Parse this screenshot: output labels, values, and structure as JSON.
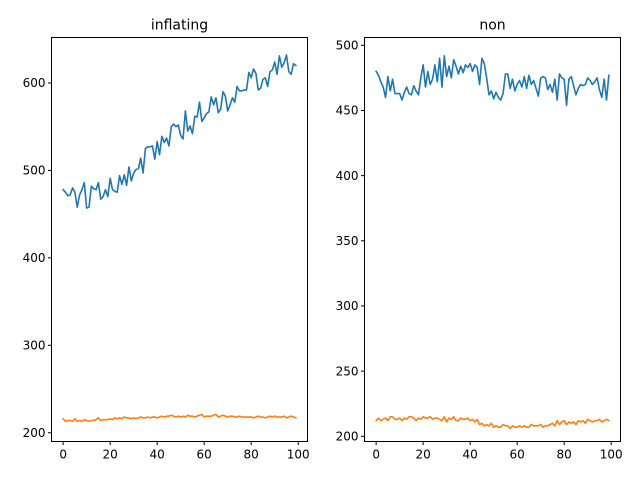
{
  "colors": {
    "series_1": "#1f77b4",
    "series_2": "#ff7f0e"
  },
  "chart_data": [
    {
      "type": "line",
      "title": "inflating",
      "xlabel": "",
      "ylabel": "",
      "xlim": [
        -4.95,
        103.95
      ],
      "ylim": [
        190,
        652
      ],
      "xticks": [
        0,
        20,
        40,
        60,
        80,
        100
      ],
      "yticks": [
        200,
        300,
        400,
        500,
        600
      ],
      "grid": false,
      "legend": false,
      "x": [
        0,
        1,
        2,
        3,
        4,
        5,
        6,
        7,
        8,
        9,
        10,
        11,
        12,
        13,
        14,
        15,
        16,
        17,
        18,
        19,
        20,
        21,
        22,
        23,
        24,
        25,
        26,
        27,
        28,
        29,
        30,
        31,
        32,
        33,
        34,
        35,
        36,
        37,
        38,
        39,
        40,
        41,
        42,
        43,
        44,
        45,
        46,
        47,
        48,
        49,
        50,
        51,
        52,
        53,
        54,
        55,
        56,
        57,
        58,
        59,
        60,
        61,
        62,
        63,
        64,
        65,
        66,
        67,
        68,
        69,
        70,
        71,
        72,
        73,
        74,
        75,
        76,
        77,
        78,
        79,
        80,
        81,
        82,
        83,
        84,
        85,
        86,
        87,
        88,
        89,
        90,
        91,
        92,
        93,
        94,
        95,
        96,
        97,
        98,
        99
      ],
      "series": [
        {
          "values": [
            478,
            475,
            471,
            472,
            480,
            475,
            458,
            472,
            478,
            486,
            457,
            458,
            482,
            479,
            478,
            486,
            467,
            470,
            478,
            470,
            491,
            478,
            476,
            475,
            494,
            484,
            495,
            483,
            504,
            488,
            497,
            501,
            502,
            514,
            497,
            525,
            527,
            527,
            528,
            513,
            533,
            518,
            539,
            532,
            537,
            528,
            550,
            553,
            550,
            552,
            540,
            536,
            568,
            545,
            551,
            542,
            562,
            561,
            578,
            556,
            560,
            565,
            567,
            584,
            575,
            583,
            566,
            570,
            590,
            585,
            568,
            575,
            583,
            578,
            596,
            591,
            591,
            592,
            592,
            612,
            606,
            616,
            611,
            592,
            594,
            604,
            606,
            596,
            613,
            615,
            624,
            610,
            631,
            618,
            623,
            632,
            613,
            610,
            622,
            620
          ]
        },
        {
          "values": [
            216,
            213,
            214,
            214,
            213,
            216,
            213,
            214,
            213,
            215,
            214,
            213,
            214,
            214,
            215,
            217,
            214,
            215,
            215,
            215,
            216,
            215,
            217,
            216,
            217,
            216,
            218,
            217,
            217,
            216,
            217,
            216,
            217,
            218,
            217,
            217,
            218,
            217,
            218,
            218,
            217,
            218,
            219,
            218,
            219,
            219,
            220,
            219,
            218,
            219,
            218,
            219,
            218,
            220,
            219,
            219,
            218,
            219,
            220,
            221,
            218,
            219,
            219,
            219,
            220,
            221,
            218,
            219,
            220,
            219,
            218,
            219,
            219,
            218,
            218,
            219,
            218,
            218,
            218,
            218,
            218,
            217,
            218,
            219,
            218,
            218,
            217,
            218,
            219,
            218,
            219,
            218,
            218,
            218,
            219,
            217,
            218,
            219,
            218,
            217
          ]
        }
      ]
    },
    {
      "type": "line",
      "title": "non",
      "xlabel": "",
      "ylabel": "",
      "xlim": [
        -4.95,
        103.95
      ],
      "ylim": [
        196,
        506
      ],
      "xticks": [
        0,
        20,
        40,
        60,
        80,
        100
      ],
      "yticks": [
        200,
        250,
        300,
        350,
        400,
        450,
        500
      ],
      "grid": false,
      "legend": false,
      "x": [
        0,
        1,
        2,
        3,
        4,
        5,
        6,
        7,
        8,
        9,
        10,
        11,
        12,
        13,
        14,
        15,
        16,
        17,
        18,
        19,
        20,
        21,
        22,
        23,
        24,
        25,
        26,
        27,
        28,
        29,
        30,
        31,
        32,
        33,
        34,
        35,
        36,
        37,
        38,
        39,
        40,
        41,
        42,
        43,
        44,
        45,
        46,
        47,
        48,
        49,
        50,
        51,
        52,
        53,
        54,
        55,
        56,
        57,
        58,
        59,
        60,
        61,
        62,
        63,
        64,
        65,
        66,
        67,
        68,
        69,
        70,
        71,
        72,
        73,
        74,
        75,
        76,
        77,
        78,
        79,
        80,
        81,
        82,
        83,
        84,
        85,
        86,
        87,
        88,
        89,
        90,
        91,
        92,
        93,
        94,
        95,
        96,
        97,
        98,
        99
      ],
      "series": [
        {
          "values": [
            480,
            477,
            472,
            468,
            460,
            476,
            465,
            474,
            463,
            463,
            463,
            458,
            464,
            468,
            463,
            462,
            469,
            465,
            462,
            475,
            485,
            468,
            480,
            470,
            474,
            485,
            472,
            490,
            468,
            492,
            476,
            484,
            475,
            489,
            484,
            478,
            484,
            479,
            485,
            483,
            486,
            480,
            485,
            483,
            470,
            490,
            486,
            475,
            462,
            465,
            459,
            464,
            460,
            458,
            463,
            478,
            478,
            467,
            474,
            465,
            470,
            473,
            468,
            476,
            467,
            477,
            470,
            473,
            467,
            461,
            475,
            476,
            475,
            466,
            470,
            464,
            474,
            458,
            478,
            475,
            474,
            454,
            474,
            476,
            469,
            462,
            467,
            470,
            469,
            470,
            475,
            473,
            470,
            472,
            475,
            466,
            460,
            474,
            458,
            477
          ]
        },
        {
          "values": [
            212,
            214,
            212,
            213,
            214,
            212,
            215,
            215,
            213,
            213,
            214,
            212,
            214,
            213,
            215,
            215,
            214,
            212,
            214,
            213,
            215,
            214,
            214,
            215,
            213,
            214,
            214,
            213,
            212,
            215,
            211,
            214,
            213,
            215,
            212,
            212,
            214,
            213,
            213,
            214,
            212,
            213,
            211,
            213,
            209,
            210,
            208,
            209,
            208,
            210,
            207,
            208,
            207,
            207,
            209,
            208,
            208,
            206,
            208,
            207,
            207,
            208,
            207,
            208,
            207,
            207,
            209,
            208,
            208,
            208,
            209,
            207,
            208,
            208,
            209,
            210,
            208,
            212,
            209,
            211,
            212,
            209,
            211,
            210,
            211,
            209,
            212,
            211,
            212,
            210,
            213,
            212,
            211,
            212,
            212,
            213,
            211,
            212,
            213,
            212
          ]
        }
      ]
    }
  ]
}
